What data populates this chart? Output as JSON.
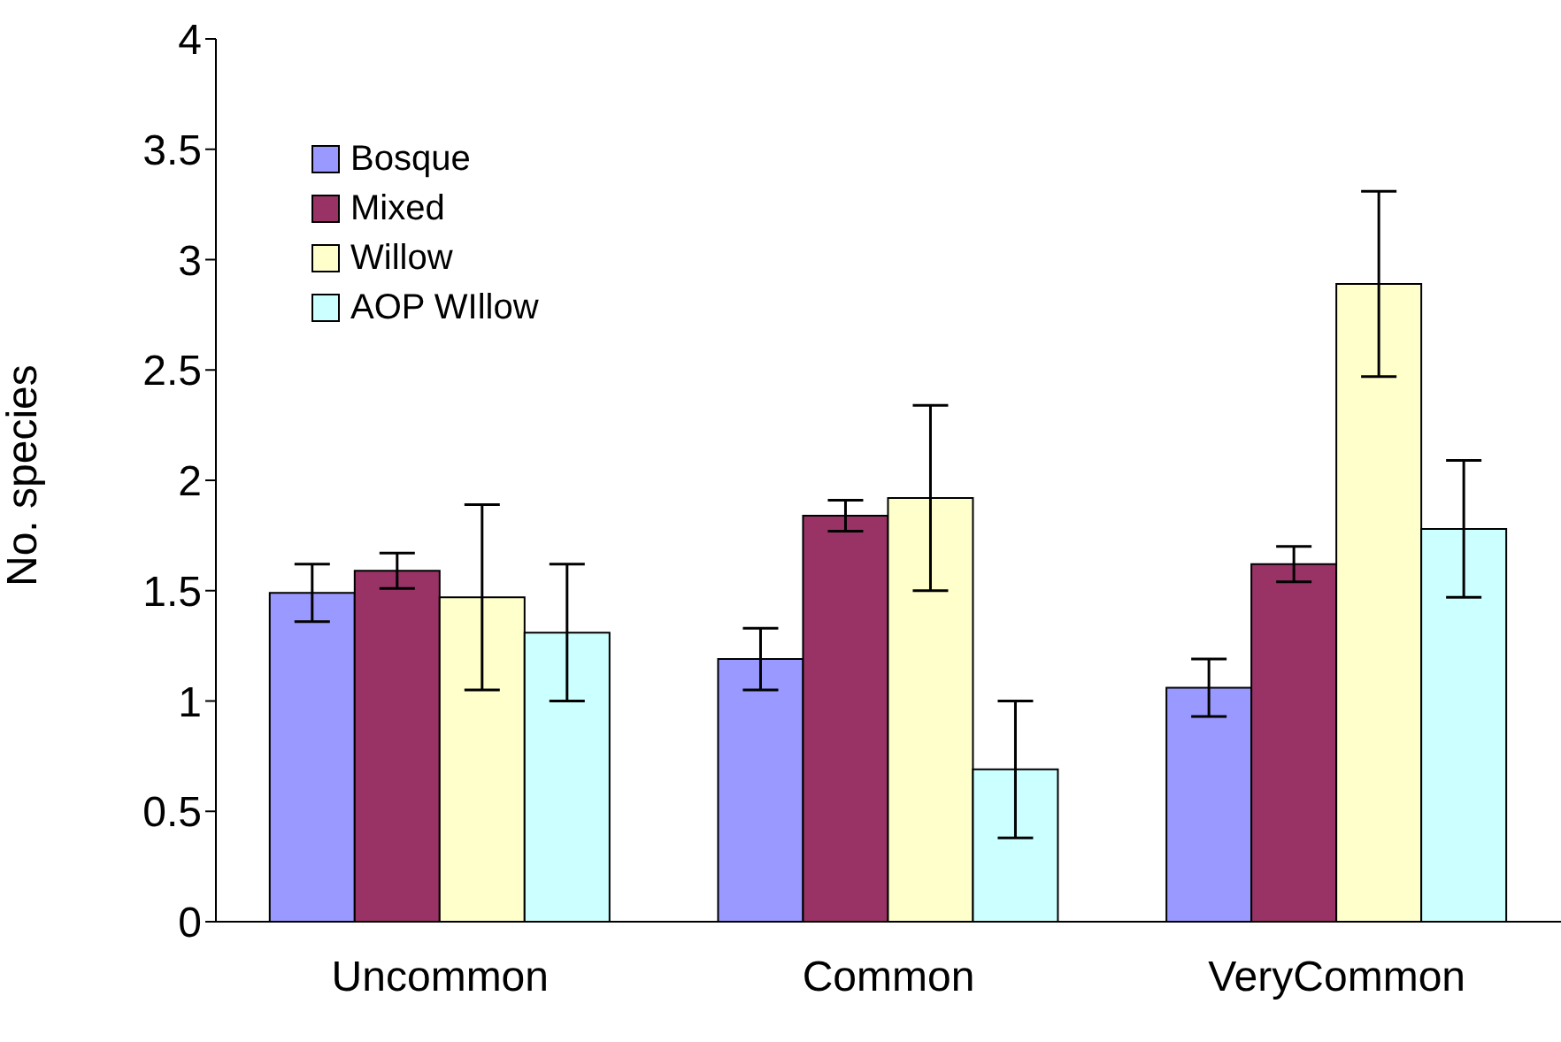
{
  "chart_data": {
    "type": "bar",
    "ylabel": "No. species",
    "categories": [
      "Uncommon",
      "Common",
      "VeryCommon"
    ],
    "series": [
      {
        "name": "Bosque",
        "color": "#9999ff",
        "values": [
          1.49,
          1.19,
          1.06
        ],
        "errors": [
          0.13,
          0.14,
          0.13
        ]
      },
      {
        "name": "Mixed",
        "color": "#993366",
        "values": [
          1.59,
          1.84,
          1.62
        ],
        "errors": [
          0.08,
          0.07,
          0.08
        ]
      },
      {
        "name": "Willow",
        "color": "#ffffcc",
        "values": [
          1.47,
          1.92,
          2.89
        ],
        "errors": [
          0.42,
          0.42,
          0.42
        ]
      },
      {
        "name": "AOP WIllow",
        "color": "#ccffff",
        "values": [
          1.31,
          0.69,
          1.78
        ],
        "errors": [
          0.31,
          0.31,
          0.31
        ]
      }
    ],
    "ylim": [
      0,
      4
    ],
    "yticks": [
      0,
      0.5,
      1,
      1.5,
      2,
      2.5,
      3,
      3.5,
      4
    ],
    "grid": false,
    "legend": "top left"
  }
}
